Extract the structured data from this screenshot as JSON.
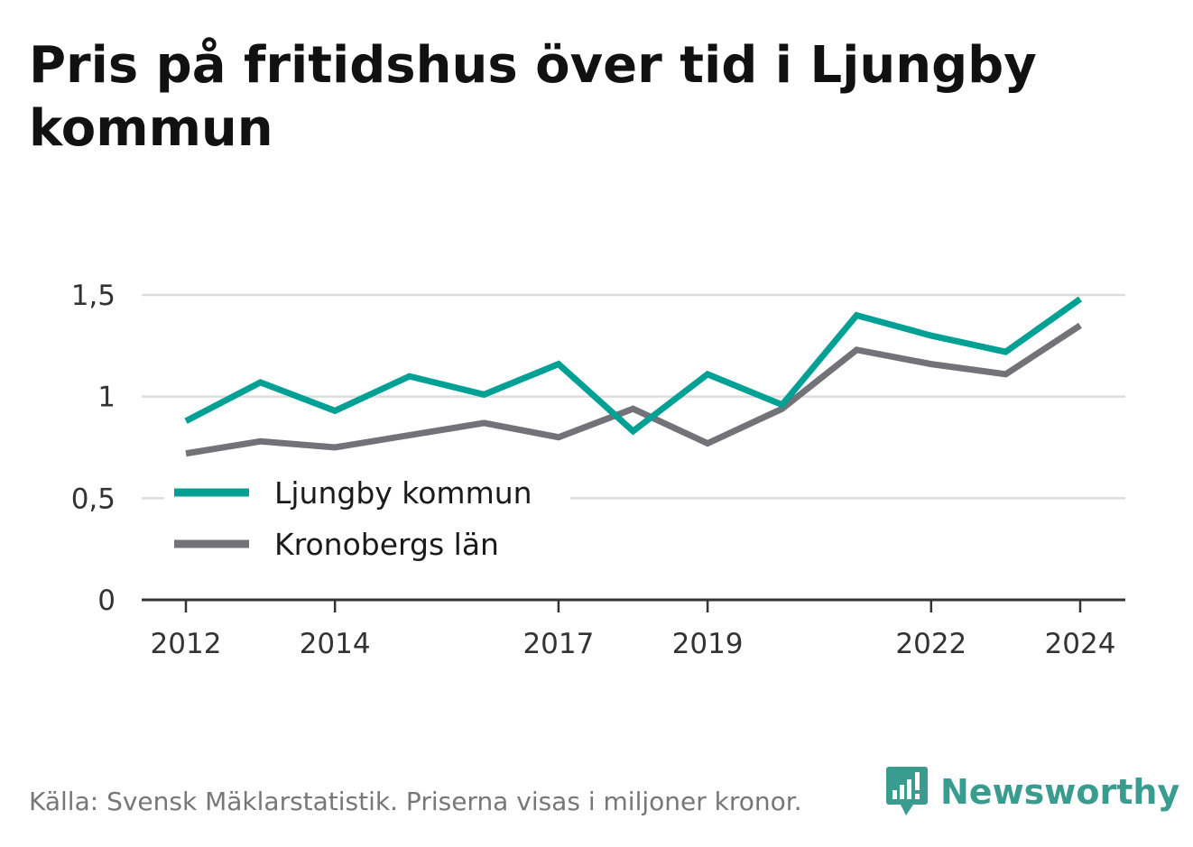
{
  "title": "Pris på fritidshus över tid i Ljungby kommun",
  "source": "Källa: Svensk Mäklarstatistik. Priserna visas i miljoner kronor.",
  "brand": "Newsworthy",
  "colors": {
    "ljungby": "#00a095",
    "kronoberg": "#727278",
    "grid": "#dddddd",
    "axis": "#333333",
    "brand": "#3a9b8f"
  },
  "chart_data": {
    "type": "line",
    "title": "Pris på fritidshus över tid i Ljungby kommun",
    "xlabel": "",
    "ylabel": "",
    "x": [
      2012,
      2013,
      2014,
      2015,
      2016,
      2017,
      2018,
      2019,
      2020,
      2021,
      2022,
      2023,
      2024
    ],
    "xticks": [
      2012,
      2014,
      2017,
      2019,
      2022,
      2024
    ],
    "ylim": [
      0,
      1.5
    ],
    "yticks": [
      0,
      0.5,
      1,
      1.5
    ],
    "ytick_labels": [
      "0",
      "0,5",
      "1",
      "1,5"
    ],
    "grid": true,
    "legend_position": "left",
    "series": [
      {
        "name": "Ljungby kommun",
        "color": "#00a095",
        "values": [
          0.88,
          1.07,
          0.93,
          1.1,
          1.01,
          1.16,
          0.83,
          1.11,
          0.96,
          1.4,
          1.3,
          1.22,
          1.48
        ]
      },
      {
        "name": "Kronobergs län",
        "color": "#727278",
        "values": [
          0.72,
          0.78,
          0.75,
          0.81,
          0.87,
          0.8,
          0.94,
          0.77,
          0.94,
          1.23,
          1.16,
          1.11,
          1.35
        ]
      }
    ]
  }
}
